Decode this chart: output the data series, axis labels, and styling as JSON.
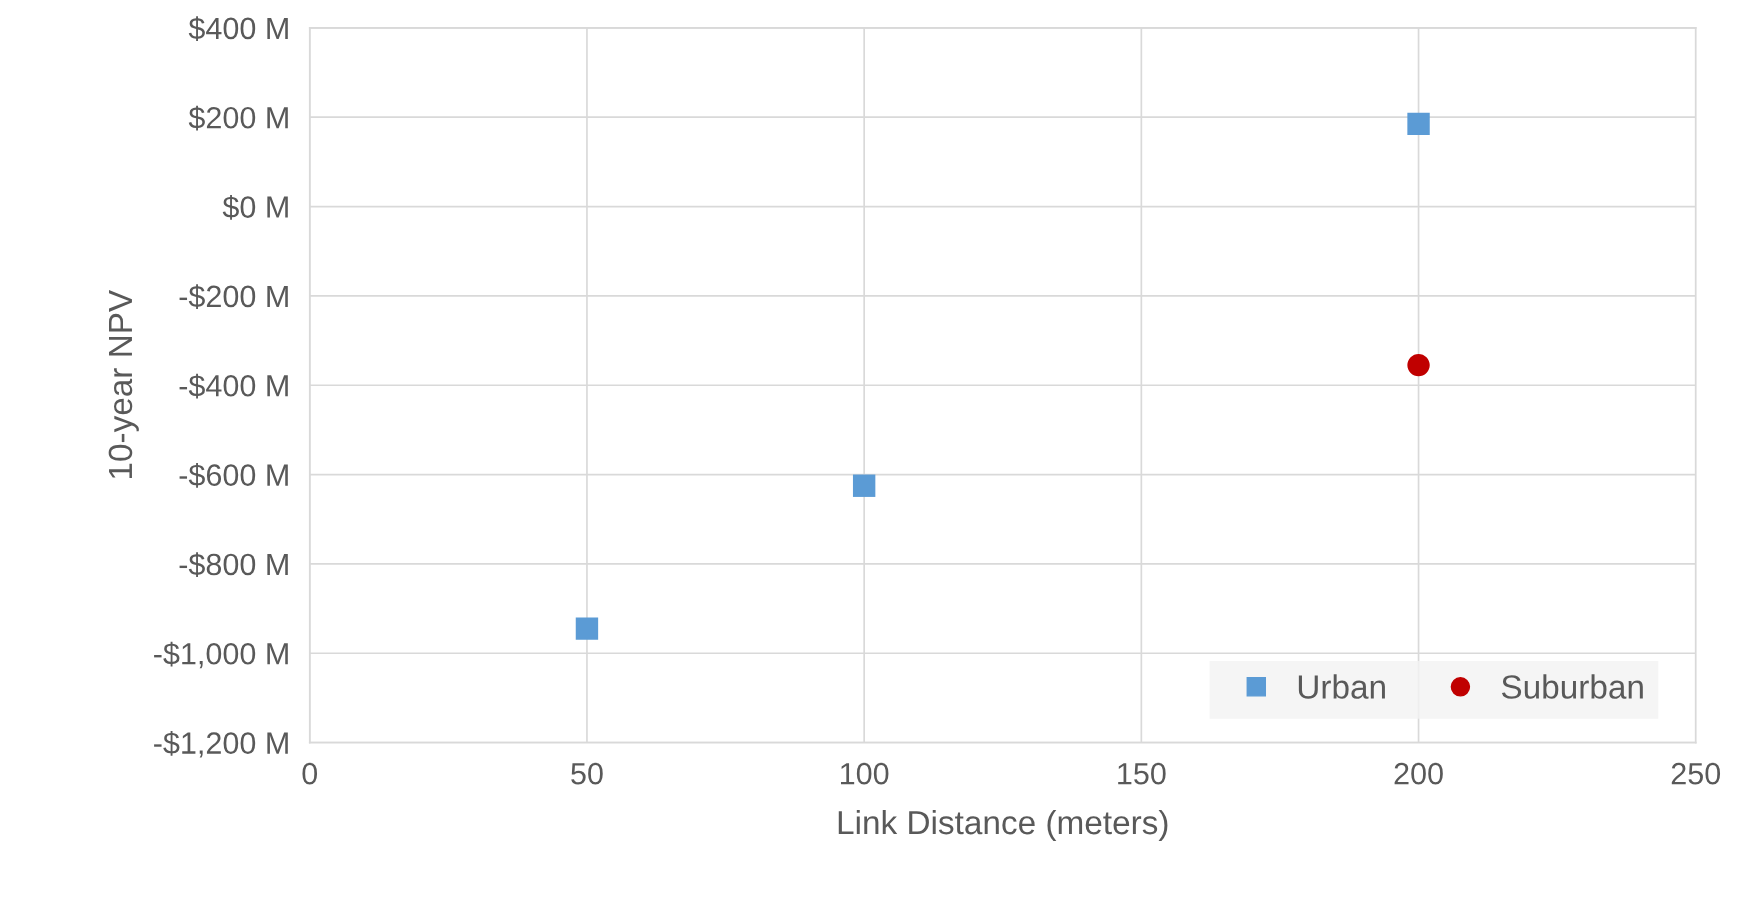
{
  "chart_data": {
    "type": "scatter",
    "xlabel": "Link Distance (meters)",
    "ylabel": "10-year NPV",
    "series": [
      {
        "name": "Urban",
        "color": "#5b9bd5",
        "marker": "square",
        "x": [
          50,
          100,
          200
        ],
        "values": [
          -945,
          -625,
          185
        ]
      },
      {
        "name": "Suburban",
        "color": "#c00000",
        "marker": "circle",
        "x": [
          200
        ],
        "values": [
          -355
        ]
      }
    ],
    "xlim": [
      0,
      250
    ],
    "xticks": [
      0,
      50,
      100,
      150,
      200,
      250
    ],
    "ylim": [
      -1200,
      400
    ],
    "yticks": [
      {
        "value": -1200,
        "label": "-$1,200 M"
      },
      {
        "value": -1000,
        "label": "-$1,000 M"
      },
      {
        "value": -800,
        "label": "-$800 M"
      },
      {
        "value": -600,
        "label": "-$600 M"
      },
      {
        "value": -400,
        "label": "-$400 M"
      },
      {
        "value": -200,
        "label": "-$200 M"
      },
      {
        "value": 0,
        "label": "$0 M"
      },
      {
        "value": 200,
        "label": "$200 M"
      },
      {
        "value": 400,
        "label": "$400 M"
      }
    ],
    "grid": true,
    "legend": "bottom right"
  }
}
